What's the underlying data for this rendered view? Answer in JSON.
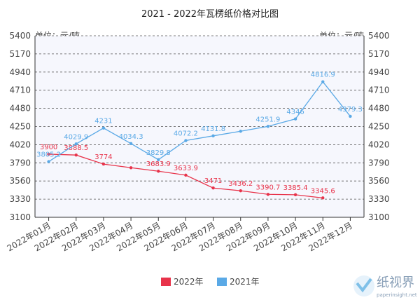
{
  "chart_data": {
    "type": "line",
    "title": "2021 - 2022年瓦楞纸价格对比图",
    "unit_label": "单位：元/吨",
    "categories": [
      "2022年01月",
      "2022年02月",
      "2022年03月",
      "2022年04月",
      "2022年05月",
      "2022年06月",
      "2022年07月",
      "2022年08月",
      "2022年09月",
      "2022年10月",
      "2022年11月",
      "2022年12月"
    ],
    "series": [
      {
        "name": "2022年",
        "color": "#e8334a",
        "values": [
          3900,
          3888.5,
          3774,
          3728,
          3683.9,
          3633.9,
          3471,
          3436.2,
          3390.7,
          3385.4,
          3345.6,
          null
        ],
        "value_labels": [
          "3900",
          "3888.5",
          "3774",
          null,
          "3683.9",
          "3633.9",
          "3471",
          "3436.2",
          "3390.7",
          "3385.4",
          "3345.6",
          null
        ]
      },
      {
        "name": "2021年",
        "color": "#5aa9e6",
        "values": [
          3805.2,
          4029.9,
          4231,
          4034.3,
          3829.8,
          4072.2,
          4131.8,
          4190,
          4251.9,
          4346,
          4816.9,
          4379.3
        ],
        "value_labels": [
          "3805.2",
          "4029.9",
          "4231",
          "4034.3",
          "3829.8",
          "4072.2",
          "4131.8",
          null,
          "4251.9",
          "4346",
          "4816.9",
          "4379.3"
        ]
      }
    ],
    "ylim": [
      3100,
      5400
    ],
    "yticks": [
      3100,
      3330,
      3560,
      3790,
      4020,
      4250,
      4480,
      4710,
      4940,
      5170,
      5400
    ],
    "grid": true,
    "legend": "bottom",
    "watermark": {
      "name": "纸视界",
      "site": "paperinsight.net"
    }
  }
}
